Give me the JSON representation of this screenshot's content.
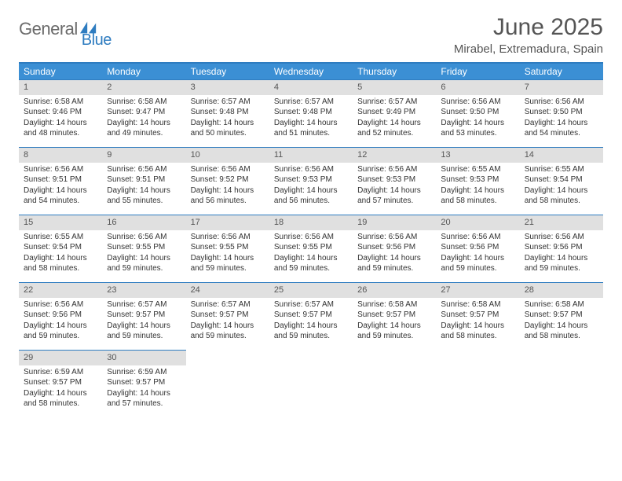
{
  "brand": {
    "part1": "General",
    "part2": "Blue",
    "icon_color": "#2e7cc0"
  },
  "header": {
    "title": "June 2025",
    "location": "Mirabel, Extremadura, Spain"
  },
  "colors": {
    "header_bg": "#3b8fd4",
    "border": "#2e7cc0",
    "daynum_bg": "#e0e0e0",
    "text": "#333333",
    "muted": "#555555"
  },
  "weekdays": [
    "Sunday",
    "Monday",
    "Tuesday",
    "Wednesday",
    "Thursday",
    "Friday",
    "Saturday"
  ],
  "days": [
    {
      "n": 1,
      "sunrise": "6:58 AM",
      "sunset": "9:46 PM",
      "day_h": 14,
      "day_m": 48
    },
    {
      "n": 2,
      "sunrise": "6:58 AM",
      "sunset": "9:47 PM",
      "day_h": 14,
      "day_m": 49
    },
    {
      "n": 3,
      "sunrise": "6:57 AM",
      "sunset": "9:48 PM",
      "day_h": 14,
      "day_m": 50
    },
    {
      "n": 4,
      "sunrise": "6:57 AM",
      "sunset": "9:48 PM",
      "day_h": 14,
      "day_m": 51
    },
    {
      "n": 5,
      "sunrise": "6:57 AM",
      "sunset": "9:49 PM",
      "day_h": 14,
      "day_m": 52
    },
    {
      "n": 6,
      "sunrise": "6:56 AM",
      "sunset": "9:50 PM",
      "day_h": 14,
      "day_m": 53
    },
    {
      "n": 7,
      "sunrise": "6:56 AM",
      "sunset": "9:50 PM",
      "day_h": 14,
      "day_m": 54
    },
    {
      "n": 8,
      "sunrise": "6:56 AM",
      "sunset": "9:51 PM",
      "day_h": 14,
      "day_m": 54
    },
    {
      "n": 9,
      "sunrise": "6:56 AM",
      "sunset": "9:51 PM",
      "day_h": 14,
      "day_m": 55
    },
    {
      "n": 10,
      "sunrise": "6:56 AM",
      "sunset": "9:52 PM",
      "day_h": 14,
      "day_m": 56
    },
    {
      "n": 11,
      "sunrise": "6:56 AM",
      "sunset": "9:53 PM",
      "day_h": 14,
      "day_m": 56
    },
    {
      "n": 12,
      "sunrise": "6:56 AM",
      "sunset": "9:53 PM",
      "day_h": 14,
      "day_m": 57
    },
    {
      "n": 13,
      "sunrise": "6:55 AM",
      "sunset": "9:53 PM",
      "day_h": 14,
      "day_m": 58
    },
    {
      "n": 14,
      "sunrise": "6:55 AM",
      "sunset": "9:54 PM",
      "day_h": 14,
      "day_m": 58
    },
    {
      "n": 15,
      "sunrise": "6:55 AM",
      "sunset": "9:54 PM",
      "day_h": 14,
      "day_m": 58
    },
    {
      "n": 16,
      "sunrise": "6:56 AM",
      "sunset": "9:55 PM",
      "day_h": 14,
      "day_m": 59
    },
    {
      "n": 17,
      "sunrise": "6:56 AM",
      "sunset": "9:55 PM",
      "day_h": 14,
      "day_m": 59
    },
    {
      "n": 18,
      "sunrise": "6:56 AM",
      "sunset": "9:55 PM",
      "day_h": 14,
      "day_m": 59
    },
    {
      "n": 19,
      "sunrise": "6:56 AM",
      "sunset": "9:56 PM",
      "day_h": 14,
      "day_m": 59
    },
    {
      "n": 20,
      "sunrise": "6:56 AM",
      "sunset": "9:56 PM",
      "day_h": 14,
      "day_m": 59
    },
    {
      "n": 21,
      "sunrise": "6:56 AM",
      "sunset": "9:56 PM",
      "day_h": 14,
      "day_m": 59
    },
    {
      "n": 22,
      "sunrise": "6:56 AM",
      "sunset": "9:56 PM",
      "day_h": 14,
      "day_m": 59
    },
    {
      "n": 23,
      "sunrise": "6:57 AM",
      "sunset": "9:57 PM",
      "day_h": 14,
      "day_m": 59
    },
    {
      "n": 24,
      "sunrise": "6:57 AM",
      "sunset": "9:57 PM",
      "day_h": 14,
      "day_m": 59
    },
    {
      "n": 25,
      "sunrise": "6:57 AM",
      "sunset": "9:57 PM",
      "day_h": 14,
      "day_m": 59
    },
    {
      "n": 26,
      "sunrise": "6:58 AM",
      "sunset": "9:57 PM",
      "day_h": 14,
      "day_m": 59
    },
    {
      "n": 27,
      "sunrise": "6:58 AM",
      "sunset": "9:57 PM",
      "day_h": 14,
      "day_m": 58
    },
    {
      "n": 28,
      "sunrise": "6:58 AM",
      "sunset": "9:57 PM",
      "day_h": 14,
      "day_m": 58
    },
    {
      "n": 29,
      "sunrise": "6:59 AM",
      "sunset": "9:57 PM",
      "day_h": 14,
      "day_m": 58
    },
    {
      "n": 30,
      "sunrise": "6:59 AM",
      "sunset": "9:57 PM",
      "day_h": 14,
      "day_m": 57
    }
  ],
  "labels": {
    "sunrise": "Sunrise:",
    "sunset": "Sunset:",
    "daylight_prefix": "Daylight:",
    "hours_word": "hours",
    "and_word": "and",
    "minutes_word": "minutes."
  },
  "layout": {
    "first_weekday_index": 0,
    "total_cells": 35
  }
}
